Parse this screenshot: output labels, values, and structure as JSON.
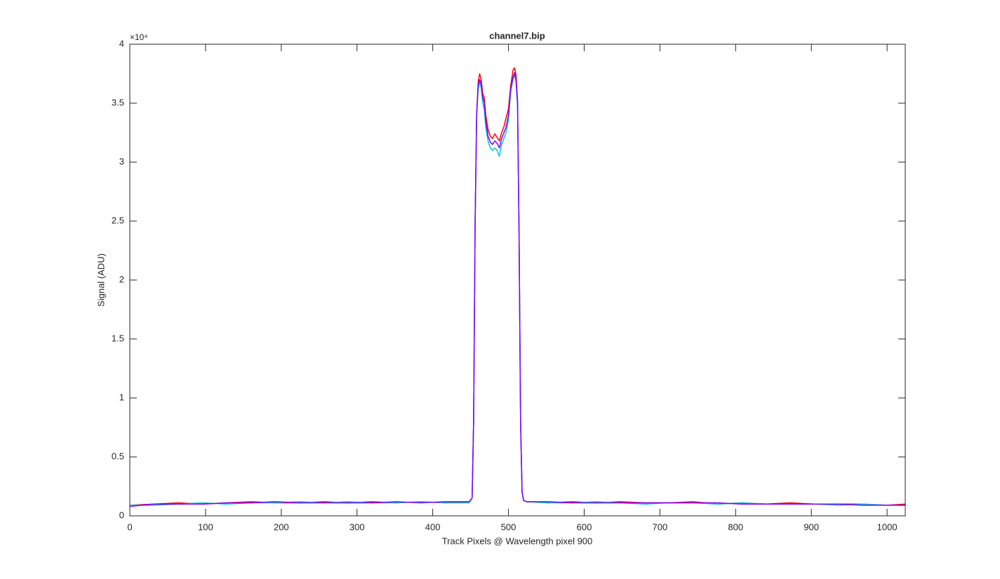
{
  "chart_data": {
    "type": "line",
    "title": "channel7.bip",
    "x_label": "Track Pixels @ Wavelength pixel 900",
    "y_label": "Signal (ADU)",
    "y_exponent_label": "×10⁴",
    "xlim": [
      0,
      1024
    ],
    "xticks": [
      0,
      100,
      200,
      300,
      400,
      500,
      600,
      700,
      800,
      900,
      1000
    ],
    "ylim": [
      0,
      4
    ],
    "yticks": [
      0,
      0.5,
      1,
      1.5,
      2,
      2.5,
      3,
      3.5,
      4
    ],
    "grid": false,
    "box": true,
    "x": [
      0,
      32,
      64,
      96,
      128,
      160,
      192,
      224,
      256,
      288,
      320,
      352,
      384,
      416,
      448,
      452,
      454,
      456,
      458,
      460,
      462,
      464,
      466,
      468,
      470,
      473,
      476,
      479,
      482,
      485,
      488,
      491,
      494,
      497,
      500,
      503,
      506,
      508,
      510,
      512,
      514,
      516,
      518,
      520,
      524,
      552,
      584,
      616,
      648,
      680,
      712,
      744,
      776,
      808,
      840,
      872,
      904,
      936,
      968,
      1000,
      1024
    ],
    "series": [
      {
        "color": "#ff0000",
        "values": [
          0.09,
          0.1,
          0.11,
          0.1,
          0.11,
          0.12,
          0.11,
          0.11,
          0.12,
          0.11,
          0.12,
          0.11,
          0.12,
          0.11,
          0.12,
          0.15,
          0.8,
          2.5,
          3.4,
          3.68,
          3.75,
          3.7,
          3.58,
          3.55,
          3.4,
          3.28,
          3.22,
          3.2,
          3.24,
          3.21,
          3.18,
          3.25,
          3.3,
          3.38,
          3.45,
          3.65,
          3.78,
          3.8,
          3.74,
          3.52,
          2.4,
          0.8,
          0.2,
          0.13,
          0.12,
          0.11,
          0.12,
          0.11,
          0.12,
          0.11,
          0.11,
          0.12,
          0.1,
          0.11,
          0.1,
          0.11,
          0.1,
          0.1,
          0.1,
          0.09,
          0.1
        ]
      },
      {
        "color": "#00c8e0",
        "values": [
          0.09,
          0.09,
          0.1,
          0.11,
          0.1,
          0.11,
          0.11,
          0.12,
          0.11,
          0.12,
          0.11,
          0.11,
          0.12,
          0.11,
          0.11,
          0.15,
          0.8,
          2.5,
          3.4,
          3.62,
          3.68,
          3.63,
          3.5,
          3.45,
          3.3,
          3.18,
          3.12,
          3.1,
          3.12,
          3.1,
          3.05,
          3.15,
          3.2,
          3.26,
          3.36,
          3.6,
          3.7,
          3.74,
          3.68,
          3.48,
          2.4,
          0.8,
          0.2,
          0.13,
          0.12,
          0.11,
          0.11,
          0.12,
          0.11,
          0.1,
          0.11,
          0.11,
          0.1,
          0.11,
          0.1,
          0.1,
          0.1,
          0.09,
          0.1,
          0.09,
          0.09
        ]
      },
      {
        "color": "#8000ff",
        "values": [
          0.08,
          0.1,
          0.1,
          0.1,
          0.11,
          0.11,
          0.12,
          0.11,
          0.11,
          0.11,
          0.11,
          0.12,
          0.11,
          0.12,
          0.12,
          0.15,
          0.8,
          2.5,
          3.4,
          3.65,
          3.7,
          3.66,
          3.55,
          3.5,
          3.35,
          3.22,
          3.17,
          3.15,
          3.18,
          3.16,
          3.12,
          3.2,
          3.25,
          3.3,
          3.4,
          3.62,
          3.72,
          3.76,
          3.7,
          3.5,
          2.4,
          0.8,
          0.2,
          0.13,
          0.12,
          0.12,
          0.11,
          0.11,
          0.11,
          0.11,
          0.11,
          0.11,
          0.11,
          0.1,
          0.1,
          0.1,
          0.1,
          0.1,
          0.09,
          0.09,
          0.09
        ]
      }
    ]
  }
}
